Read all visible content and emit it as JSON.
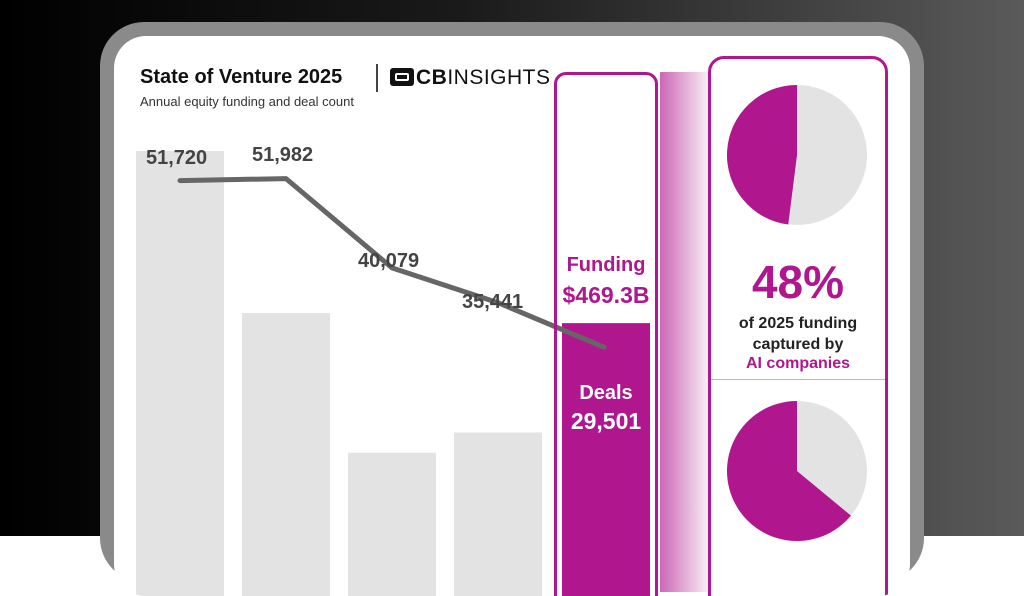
{
  "header": {
    "title": "State of Venture 2025",
    "logo_bold": "CB",
    "logo_rest": "INSIGHTS",
    "subtitle": "Annual equity funding and deal count"
  },
  "chart_data": {
    "type": "bar",
    "title": "State of Venture 2025",
    "subtitle": "Annual equity funding and deal count",
    "series": [
      {
        "name": "Funding",
        "type": "bar",
        "values": [
          null,
          null,
          null,
          null,
          469.3
        ]
      },
      {
        "name": "Deals",
        "type": "line",
        "values": [
          51720,
          51982,
          40079,
          35441,
          29501
        ]
      }
    ],
    "deal_labels": [
      "51,720",
      "51,982",
      "40,079",
      "35,441",
      "29,501"
    ],
    "bar_relative_heights": [
      1.0,
      0.6,
      0.255,
      0.305,
      0.575
    ],
    "highlight": {
      "funding_label": "Funding",
      "funding_value": "$469.3B",
      "deals_label": "Deals",
      "deals_value": "29,501"
    },
    "colors": {
      "bar": "#e3e3e3",
      "highlight": "#b0168e",
      "line": "#666666"
    }
  },
  "side_panel": {
    "pct": "48%",
    "caption_line1": "of 2025 funding",
    "caption_line2": "captured by",
    "caption_line3": "AI companies",
    "pie1_fraction": 0.48,
    "pie2_fraction": 0.64
  }
}
